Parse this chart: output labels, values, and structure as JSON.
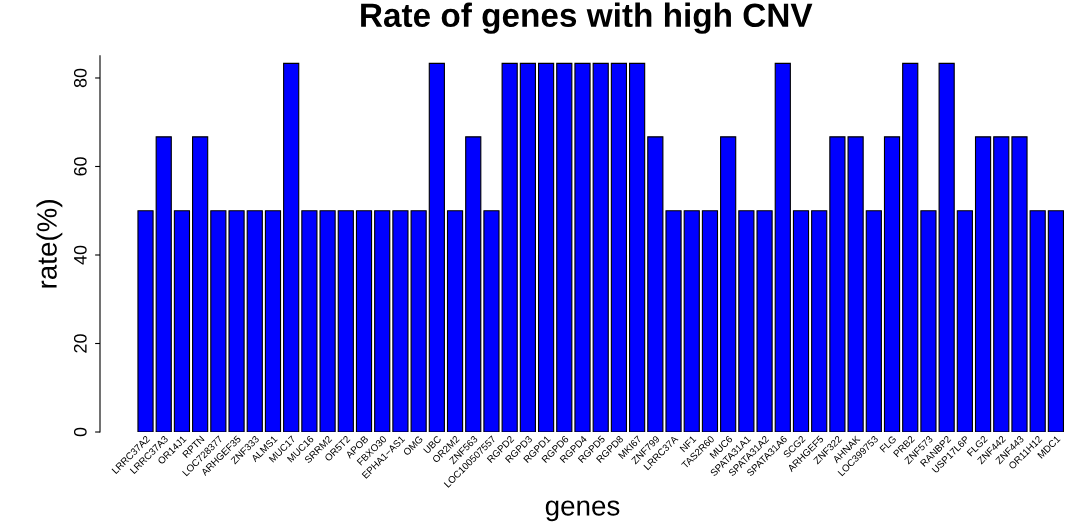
{
  "chart_data": {
    "type": "bar",
    "title": "Rate of genes with high CNV",
    "xlabel": "genes",
    "ylabel": "rate(%)",
    "categories": [
      "LRRC37A2",
      "LRRC37A3",
      "OR14J1",
      "RPTN",
      "LOC728377",
      "ARHGEF35",
      "ZNF333",
      "ALMS1",
      "MUC17",
      "MUC16",
      "SRRM2",
      "OR5T2",
      "APOB",
      "FBXO30",
      "EPHA1−AS1",
      "OMG",
      "UBC",
      "OR2M2",
      "ZNF563",
      "LOC100507557",
      "RGPD2",
      "RGPD3",
      "RGPD1",
      "RGPD6",
      "RGPD4",
      "RGPD5",
      "RGPD8",
      "MKI67",
      "ZNF799",
      "LRRC37A",
      "NF1",
      "TAS2R60",
      "MUC6",
      "SPATA31A1",
      "SPATA31A2",
      "SPATA31A6",
      "SCG2",
      "ARHGEF5",
      "ZNF322",
      "AHNAK",
      "LOC399753",
      "FLG",
      "PRB2",
      "ZNF573",
      "RANBP2",
      "USP17L6P",
      "FLG2",
      "ZNF442",
      "ZNF443",
      "OR11H12",
      "MDC1"
    ],
    "values": [
      50,
      66.7,
      50,
      66.7,
      50,
      50,
      50,
      50,
      83.3,
      50,
      50,
      50,
      50,
      50,
      50,
      50,
      83.3,
      50,
      66.7,
      50,
      83.3,
      83.3,
      83.3,
      83.3,
      83.3,
      83.3,
      83.3,
      83.3,
      66.7,
      50,
      50,
      50,
      66.7,
      50,
      50,
      83.3,
      50,
      50,
      66.7,
      66.7,
      50,
      66.7,
      83.3,
      50,
      83.3,
      50,
      66.7,
      66.7,
      66.7,
      50,
      50
    ],
    "color": "#0000ff",
    "ylim": [
      0,
      85
    ],
    "yticks": [
      0,
      20,
      40,
      60,
      80
    ],
    "grid": false
  }
}
